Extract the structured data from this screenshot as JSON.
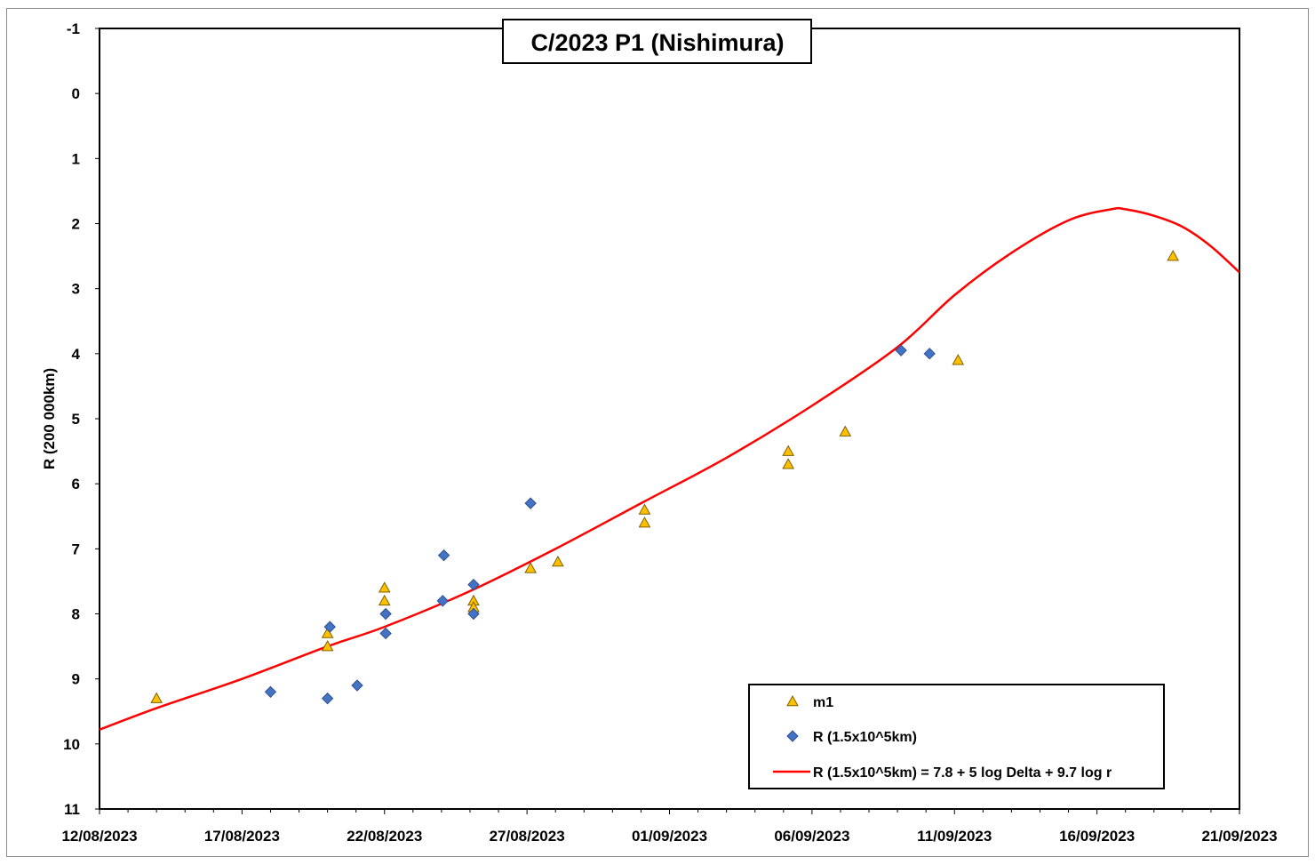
{
  "chart_data": {
    "type": "scatter",
    "title": "C/2023 P1 (Nishimura)",
    "xlabel": "",
    "ylabel": "R (200 000km)",
    "x_ticks": [
      "12/08/2023",
      "17/08/2023",
      "22/08/2023",
      "27/08/2023",
      "01/09/2023",
      "06/09/2023",
      "11/09/2023",
      "16/09/2023",
      "21/09/2023"
    ],
    "xlim": [
      "12/08/2023",
      "21/09/2023"
    ],
    "ylim": [
      -1,
      11
    ],
    "y_inverted": true,
    "y_ticks": [
      -1,
      0,
      1,
      2,
      3,
      4,
      5,
      6,
      7,
      8,
      9,
      10,
      11
    ],
    "grid": false,
    "legend_position": "bottom-right",
    "series": [
      {
        "name": "m1",
        "marker": "triangle",
        "color": "#FFC000",
        "points": [
          {
            "x": "2023-08-14 00:00",
            "y": 9.3
          },
          {
            "x": "2023-08-20 00:00",
            "y": 8.3
          },
          {
            "x": "2023-08-20 00:00",
            "y": 8.5
          },
          {
            "x": "2023-08-22 00:00",
            "y": 7.6
          },
          {
            "x": "2023-08-22 00:00",
            "y": 7.8
          },
          {
            "x": "2023-08-25 03:00",
            "y": 7.8
          },
          {
            "x": "2023-08-25 03:00",
            "y": 7.9
          },
          {
            "x": "2023-08-27 03:00",
            "y": 7.3
          },
          {
            "x": "2023-08-28 02:00",
            "y": 7.2
          },
          {
            "x": "2023-08-31 03:00",
            "y": 6.4
          },
          {
            "x": "2023-08-31 03:00",
            "y": 6.6
          },
          {
            "x": "2023-09-05 04:00",
            "y": 5.5
          },
          {
            "x": "2023-09-05 04:00",
            "y": 5.7
          },
          {
            "x": "2023-09-07 04:00",
            "y": 5.2
          },
          {
            "x": "2023-09-11 03:00",
            "y": 4.1
          },
          {
            "x": "2023-09-18 16:00",
            "y": 2.5
          }
        ]
      },
      {
        "name": "R (1.5x10^5km)",
        "marker": "diamond",
        "color": "#4472C4",
        "points": [
          {
            "x": "2023-08-18 00:00",
            "y": 9.2
          },
          {
            "x": "2023-08-20 02:00",
            "y": 8.2
          },
          {
            "x": "2023-08-20 00:00",
            "y": 9.3
          },
          {
            "x": "2023-08-21 01:00",
            "y": 9.1
          },
          {
            "x": "2023-08-22 01:00",
            "y": 8.0
          },
          {
            "x": "2023-08-22 01:00",
            "y": 8.3
          },
          {
            "x": "2023-08-24 02:00",
            "y": 7.1
          },
          {
            "x": "2023-08-24 01:00",
            "y": 7.8
          },
          {
            "x": "2023-08-25 03:00",
            "y": 7.55
          },
          {
            "x": "2023-08-25 03:00",
            "y": 8.0
          },
          {
            "x": "2023-08-27 03:00",
            "y": 6.3
          },
          {
            "x": "2023-09-09 03:00",
            "y": 3.95
          },
          {
            "x": "2023-09-10 03:00",
            "y": 4.0
          }
        ]
      },
      {
        "name": "R (1.5x10^5km) = 7.8 + 5 log Delta + 9.7 log r",
        "type": "line",
        "color": "#FF0000",
        "points": [
          {
            "x": "2023-08-12 00:00",
            "y": 9.78
          },
          {
            "x": "2023-08-14 00:00",
            "y": 9.45
          },
          {
            "x": "2023-08-17 00:00",
            "y": 9.0
          },
          {
            "x": "2023-08-20 00:00",
            "y": 8.5
          },
          {
            "x": "2023-08-22 00:00",
            "y": 8.2
          },
          {
            "x": "2023-08-25 00:00",
            "y": 7.65
          },
          {
            "x": "2023-08-28 00:00",
            "y": 7.0
          },
          {
            "x": "2023-08-31 00:00",
            "y": 6.3
          },
          {
            "x": "2023-09-03 00:00",
            "y": 5.6
          },
          {
            "x": "2023-09-06 00:00",
            "y": 4.8
          },
          {
            "x": "2023-09-09 00:00",
            "y": 3.9
          },
          {
            "x": "2023-09-11 00:00",
            "y": 3.1
          },
          {
            "x": "2023-09-13 00:00",
            "y": 2.45
          },
          {
            "x": "2023-09-15 00:00",
            "y": 1.95
          },
          {
            "x": "2023-09-16 12:00",
            "y": 1.78
          },
          {
            "x": "2023-09-17 00:00",
            "y": 1.78
          },
          {
            "x": "2023-09-18 00:00",
            "y": 1.88
          },
          {
            "x": "2023-09-19 00:00",
            "y": 2.05
          },
          {
            "x": "2023-09-20 00:00",
            "y": 2.35
          },
          {
            "x": "2023-09-21 00:00",
            "y": 2.75
          }
        ]
      }
    ]
  }
}
